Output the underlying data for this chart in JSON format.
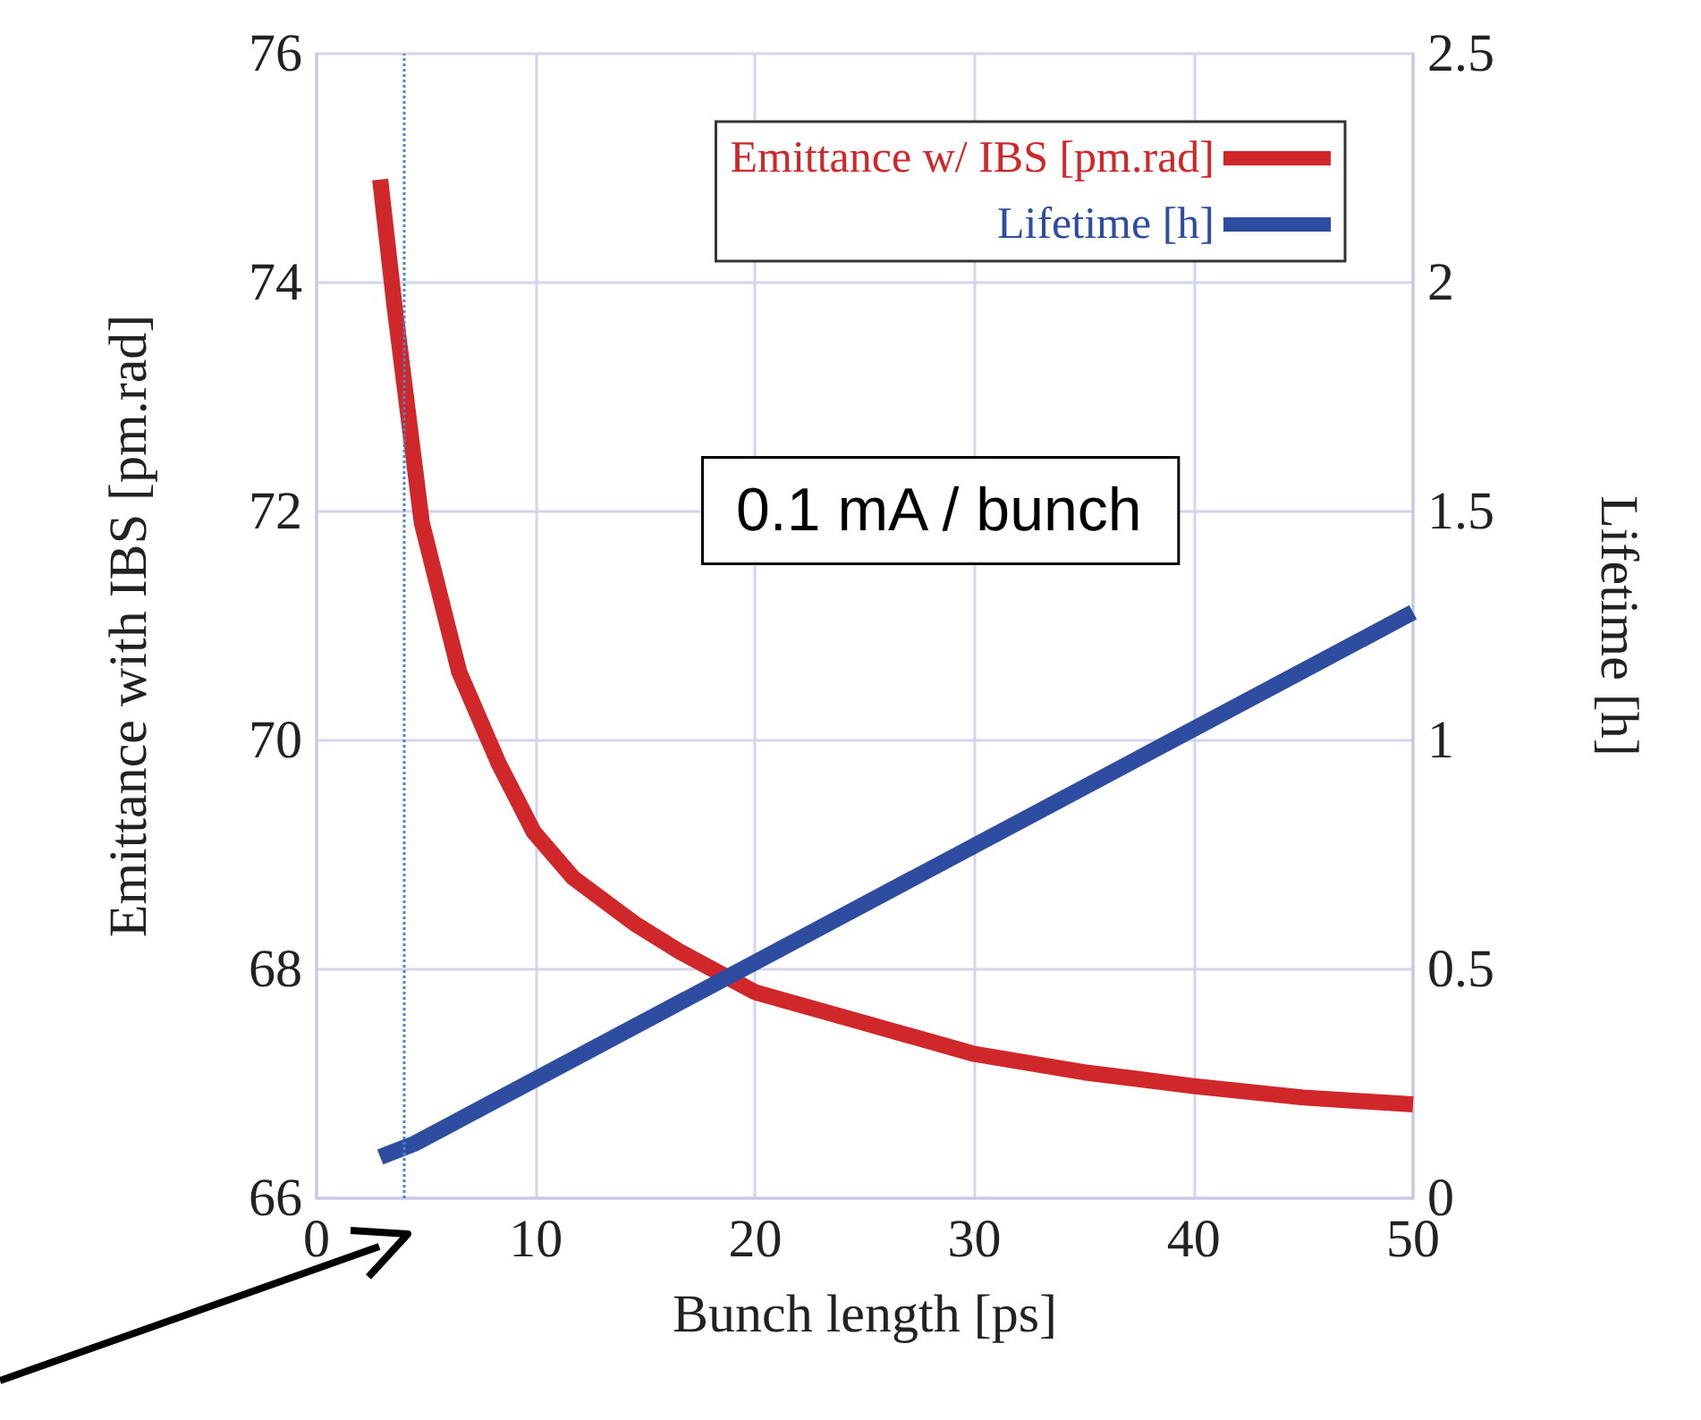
{
  "chart_data": {
    "type": "line",
    "xlabel": "Bunch length [ps]",
    "ylabel": "Emittance with IBS [pm.rad]",
    "y2label": "Lifetime [h]",
    "xlim": [
      0,
      50
    ],
    "xticks": [
      0,
      10,
      20,
      30,
      40,
      50
    ],
    "ylim": [
      66,
      76
    ],
    "yticks": [
      66,
      68,
      70,
      72,
      74,
      76
    ],
    "y2lim": [
      0,
      2.5
    ],
    "y2ticks": [
      0,
      0.5,
      1,
      1.5,
      2,
      2.5
    ],
    "grid": true,
    "legend": "top right",
    "marker": "none",
    "line_style": "solid",
    "series": [
      {
        "name": "Emittance w/ IBS [pm.rad]",
        "color": "#d0282a",
        "x": [
          2.9,
          3.55,
          4.8,
          6.5,
          8.3,
          9.9,
          11.7,
          14.5,
          16.6,
          20,
          25,
          30,
          35,
          40,
          45,
          50
        ],
        "values": [
          74.9,
          73.8,
          71.9,
          70.6,
          69.8,
          69.2,
          68.8,
          68.4,
          68.15,
          67.8,
          67.53,
          67.26,
          67.1,
          66.98,
          66.88,
          66.82
        ]
      },
      {
        "name": "Lifetime [h]",
        "color": "#2f4da0",
        "axis": "y2",
        "x": [
          2.9,
          4.5,
          50
        ],
        "values": [
          0.09,
          0.12,
          1.28
        ]
      }
    ],
    "ref_lines": [
      {
        "axis": "x",
        "value": 4,
        "color": "#4a86c8",
        "line_style": "dotted"
      }
    ],
    "annotations": [
      "0.1 mA / bunch"
    ]
  }
}
